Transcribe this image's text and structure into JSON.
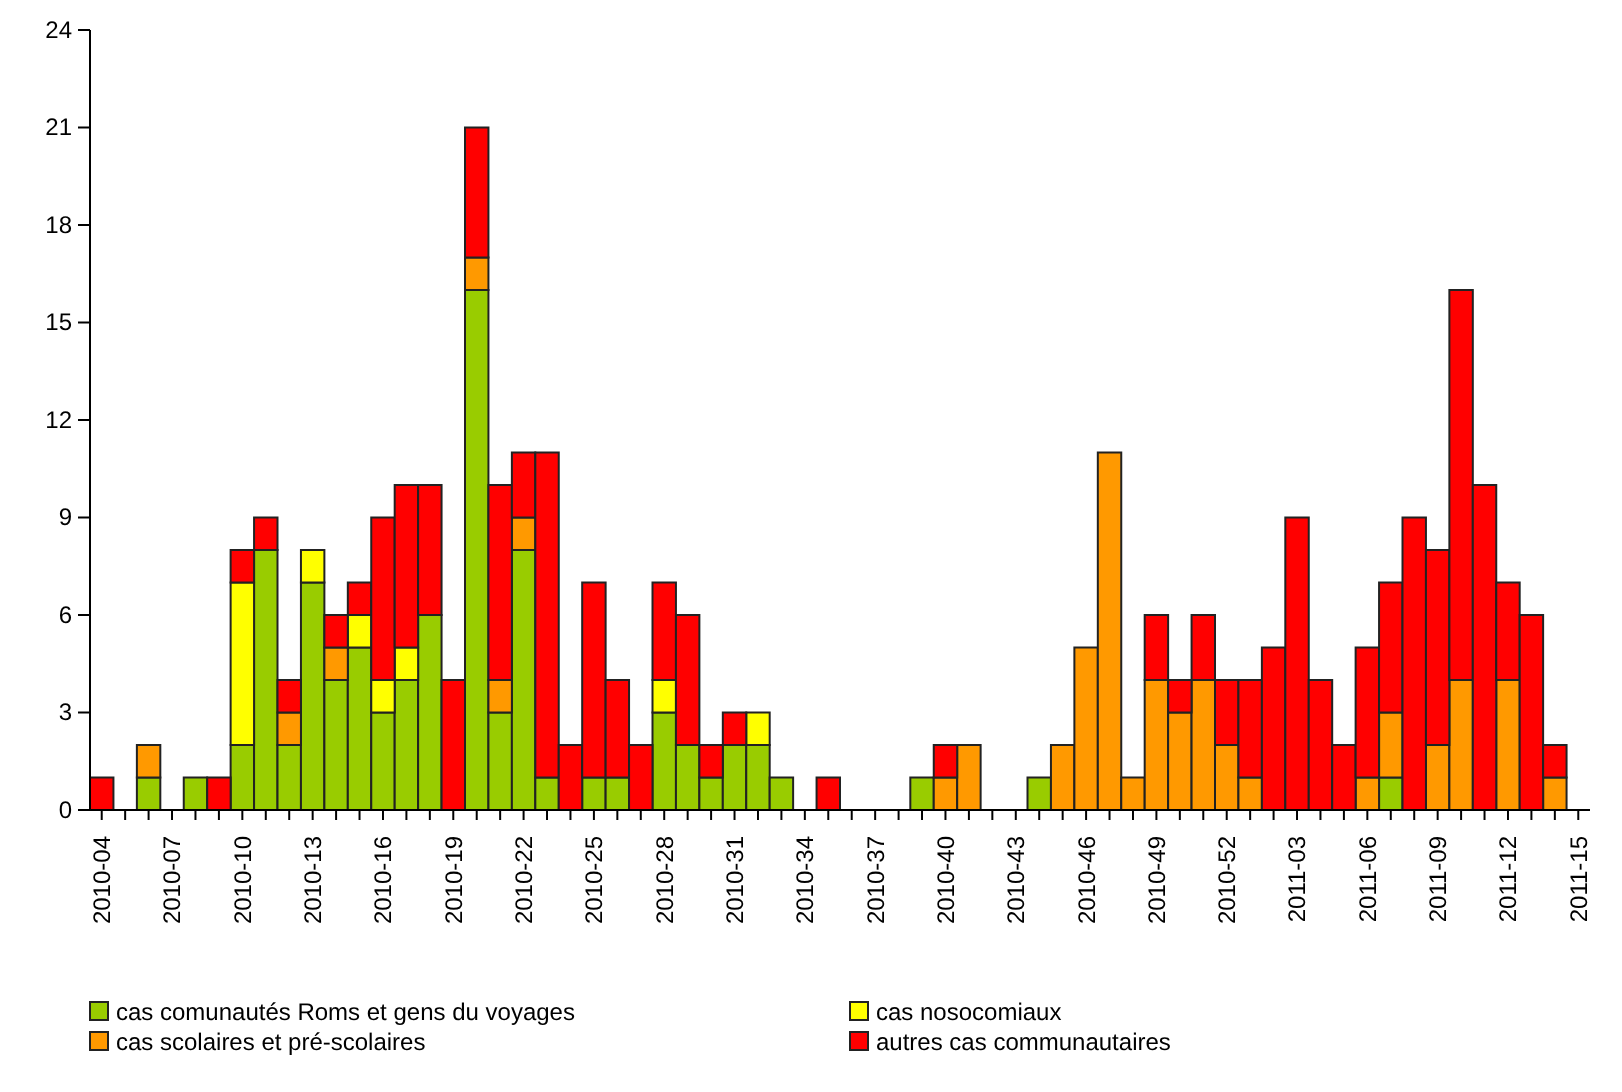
{
  "chart_data": {
    "type": "bar",
    "stacked": true,
    "categories": [
      "2010-04",
      null,
      null,
      "2010-07",
      null,
      null,
      "2010-10",
      null,
      null,
      "2010-13",
      null,
      null,
      "2010-16",
      null,
      null,
      "2010-19",
      null,
      null,
      "2010-22",
      null,
      null,
      "2010-25",
      null,
      null,
      "2010-28",
      null,
      null,
      "2010-31",
      null,
      null,
      "2010-34",
      null,
      null,
      "2010-37",
      null,
      null,
      "2010-40",
      null,
      null,
      "2010-43",
      null,
      null,
      "2010-46",
      null,
      null,
      "2010-49",
      null,
      null,
      "2010-52",
      null,
      null,
      "2011-03",
      null,
      null,
      "2011-06",
      null,
      null,
      "2011-09",
      null,
      null,
      "2011-12",
      null,
      null,
      "2011-15"
    ],
    "series": [
      {
        "name": "cas comunautés Roms et gens du voyages",
        "color": "#99cc00",
        "values": [
          0,
          0,
          1,
          0,
          1,
          0,
          2,
          8,
          2,
          7,
          4,
          5,
          3,
          4,
          6,
          0,
          16,
          3,
          8,
          1,
          0,
          1,
          1,
          0,
          3,
          2,
          1,
          2,
          2,
          1,
          0,
          0,
          0,
          0,
          0,
          1,
          0,
          0,
          0,
          0,
          1,
          0,
          0,
          0,
          0,
          0,
          0,
          0,
          0,
          0,
          0,
          0,
          0,
          0,
          0,
          1,
          0,
          0,
          0,
          0,
          0,
          0,
          0,
          0
        ]
      },
      {
        "name": "cas scolaires et pré-scolaires",
        "color": "#ff9900",
        "values": [
          0,
          0,
          1,
          0,
          0,
          0,
          0,
          0,
          1,
          0,
          1,
          0,
          0,
          0,
          0,
          0,
          1,
          1,
          1,
          0,
          0,
          0,
          0,
          0,
          0,
          0,
          0,
          0,
          0,
          0,
          0,
          0,
          0,
          0,
          0,
          0,
          1,
          2,
          0,
          0,
          0,
          2,
          5,
          11,
          1,
          4,
          3,
          4,
          2,
          1,
          0,
          0,
          0,
          0,
          1,
          2,
          0,
          2,
          4,
          0,
          4,
          0,
          1,
          0
        ]
      },
      {
        "name": "cas nosocomiaux",
        "color": "#ffff00",
        "values": [
          0,
          0,
          0,
          0,
          0,
          0,
          5,
          0,
          0,
          1,
          0,
          1,
          1,
          1,
          0,
          0,
          0,
          0,
          0,
          0,
          0,
          0,
          0,
          0,
          1,
          0,
          0,
          0,
          1,
          0,
          0,
          0,
          0,
          0,
          0,
          0,
          0,
          0,
          0,
          0,
          0,
          0,
          0,
          0,
          0,
          0,
          0,
          0,
          0,
          0,
          0,
          0,
          0,
          0,
          0,
          0,
          0,
          0,
          0,
          0,
          0,
          0,
          0,
          0
        ]
      },
      {
        "name": "autres cas communautaires",
        "color": "#ff0000",
        "values": [
          1,
          0,
          0,
          0,
          0,
          1,
          1,
          1,
          1,
          0,
          1,
          1,
          5,
          5,
          4,
          4,
          4,
          6,
          2,
          10,
          2,
          6,
          3,
          2,
          3,
          4,
          1,
          1,
          0,
          0,
          0,
          1,
          0,
          0,
          0,
          0,
          1,
          0,
          0,
          0,
          0,
          0,
          0,
          0,
          0,
          2,
          1,
          2,
          2,
          3,
          5,
          9,
          4,
          2,
          4,
          4,
          9,
          6,
          12,
          10,
          3,
          6,
          1,
          0
        ]
      }
    ],
    "ylim": [
      0,
      24
    ],
    "yticks": [
      0,
      3,
      6,
      9,
      12,
      15,
      18,
      21,
      24
    ],
    "grid": false,
    "legend": "bottom"
  }
}
